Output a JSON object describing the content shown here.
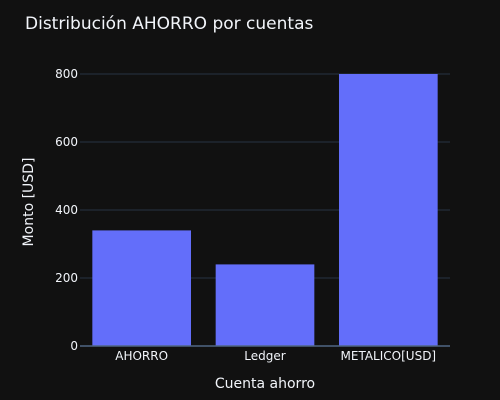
{
  "chart_data": {
    "type": "bar",
    "title": "Distribución AHORRO por cuentas",
    "xlabel": "Cuenta ahorro",
    "ylabel": "Monto [USD]",
    "categories": [
      "AHORRO",
      "Ledger",
      "METALICO[USD]"
    ],
    "values": [
      340,
      240,
      800
    ],
    "ylim": [
      0,
      800
    ],
    "yticks": [
      0,
      200,
      400,
      600,
      800
    ],
    "grid": true,
    "bar_color": "#636efa",
    "background_color": "#111111",
    "grid_color": "#283442",
    "text_color": "#f2f5fa"
  }
}
